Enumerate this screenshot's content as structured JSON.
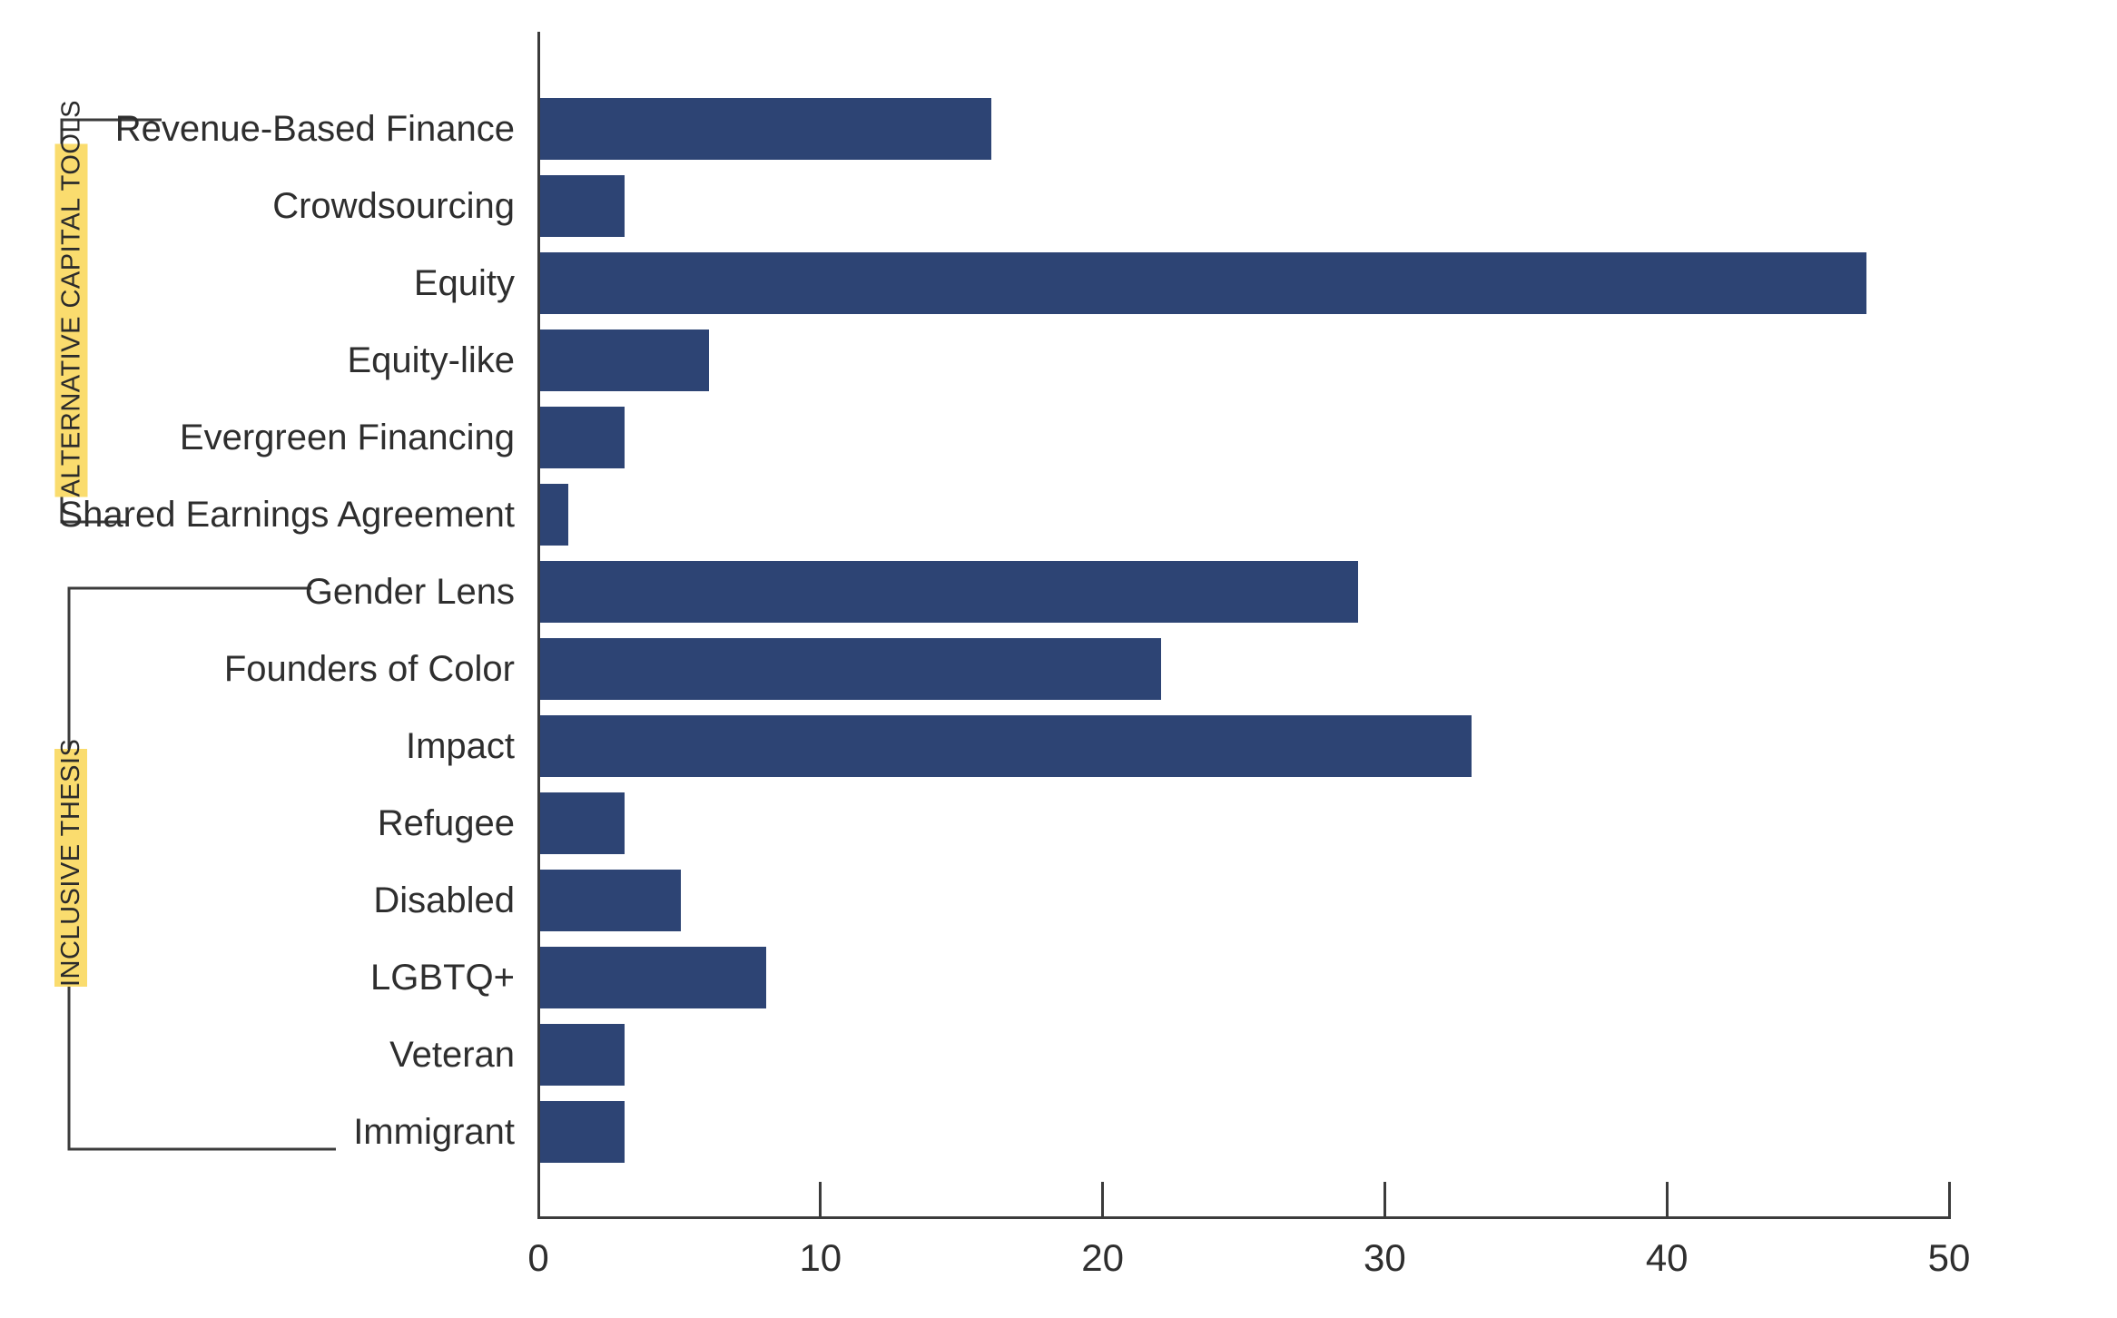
{
  "chart_data": {
    "type": "bar",
    "orientation": "horizontal",
    "title": "",
    "categories": [
      "Revenue-Based Finance",
      "Crowdsourcing",
      "Equity",
      "Equity-like",
      "Evergreen Financing",
      "Shared Earnings Agreement",
      "Gender Lens",
      "Founders of Color",
      "Impact",
      "Refugee",
      "Disabled",
      "LGBTQ+",
      "Veteran",
      "Immigrant"
    ],
    "values": [
      16,
      3,
      47,
      6,
      3,
      1,
      29,
      22,
      33,
      3,
      5,
      8,
      3,
      3
    ],
    "groups": [
      {
        "label": "ALTERNATIVE CAPITAL TOOLS",
        "start_index": 0,
        "end_index": 5
      },
      {
        "label": "INCLUSIVE THESIS",
        "start_index": 6,
        "end_index": 13
      }
    ],
    "x_ticks": [
      0,
      10,
      20,
      30,
      40,
      50
    ],
    "xlim": [
      0,
      50
    ],
    "xlabel": "",
    "ylabel": "",
    "legend": null,
    "grid": false,
    "bar_color": "#2D4474",
    "group_highlight_color": "#FADC6E",
    "axis_color": "#3B3B3B",
    "text_color": "#2E2E2E"
  }
}
